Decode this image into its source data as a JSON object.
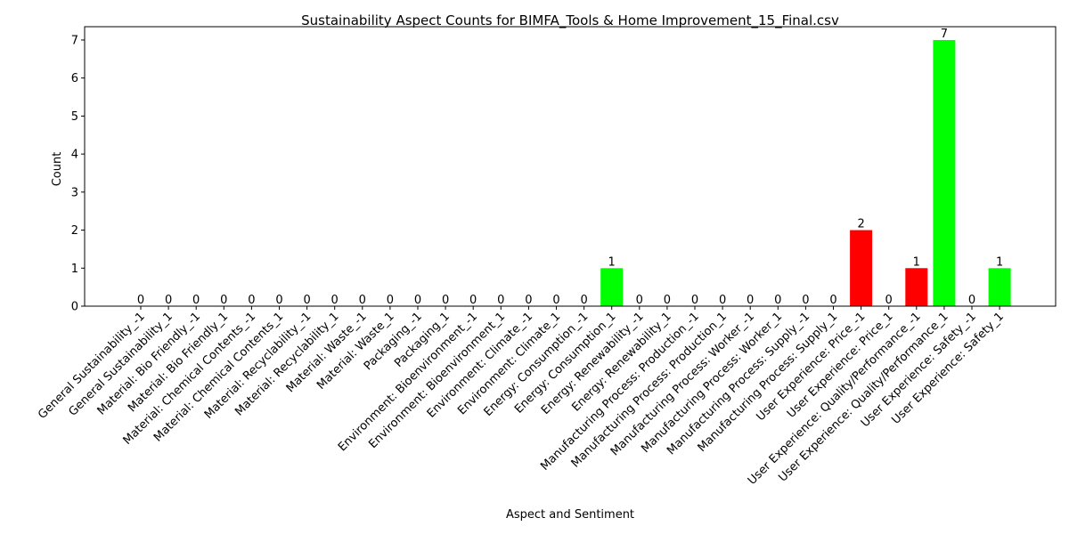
{
  "chart_data": {
    "type": "bar",
    "title": "Sustainability Aspect Counts for BIMFA_Tools & Home Improvement_15_Final.csv",
    "xlabel": "Aspect and Sentiment",
    "ylabel": "Count",
    "ylim": [
      0,
      7.35
    ],
    "yticks": [
      0,
      1,
      2,
      3,
      4,
      5,
      6,
      7
    ],
    "grid": false,
    "legend": "none",
    "colors": {
      "positive": "#00ff00",
      "negative": "#ff0000"
    },
    "categories": [
      "General Sustainability_-1",
      "General Sustainability_1",
      "Material: Bio Friendly_-1",
      "Material: Bio Friendly_1",
      "Material: Chemical Contents_-1",
      "Material: Chemical Contents_1",
      "Material: Recyclability_-1",
      "Material: Recyclability_1",
      "Material: Waste_-1",
      "Material: Waste_1",
      "Packaging_-1",
      "Packaging_1",
      "Environment: Bioenvironment_-1",
      "Environment: Bioenvironment_1",
      "Environment: Climate_-1",
      "Environment: Climate_1",
      "Energy: Consumption_-1",
      "Energy: Consumption_1",
      "Energy: Renewability_-1",
      "Energy: Renewability_1",
      "Manufacturing Process: Production_-1",
      "Manufacturing Process: Production_1",
      "Manufacturing Process: Worker_-1",
      "Manufacturing Process: Worker_1",
      "Manufacturing Process: Supply_-1",
      "Manufacturing Process: Supply_1",
      "User Experience: Price_-1",
      "User Experience: Price_1",
      "User Experience: Quality/Performance_-1",
      "User Experience: Quality/Performance_1",
      "User Experience: Safety_-1",
      "User Experience: Safety_1"
    ],
    "values": [
      0,
      0,
      0,
      0,
      0,
      0,
      0,
      0,
      0,
      0,
      0,
      0,
      0,
      0,
      0,
      0,
      0,
      1,
      0,
      0,
      0,
      0,
      0,
      0,
      0,
      0,
      2,
      0,
      1,
      7,
      0,
      1
    ]
  }
}
